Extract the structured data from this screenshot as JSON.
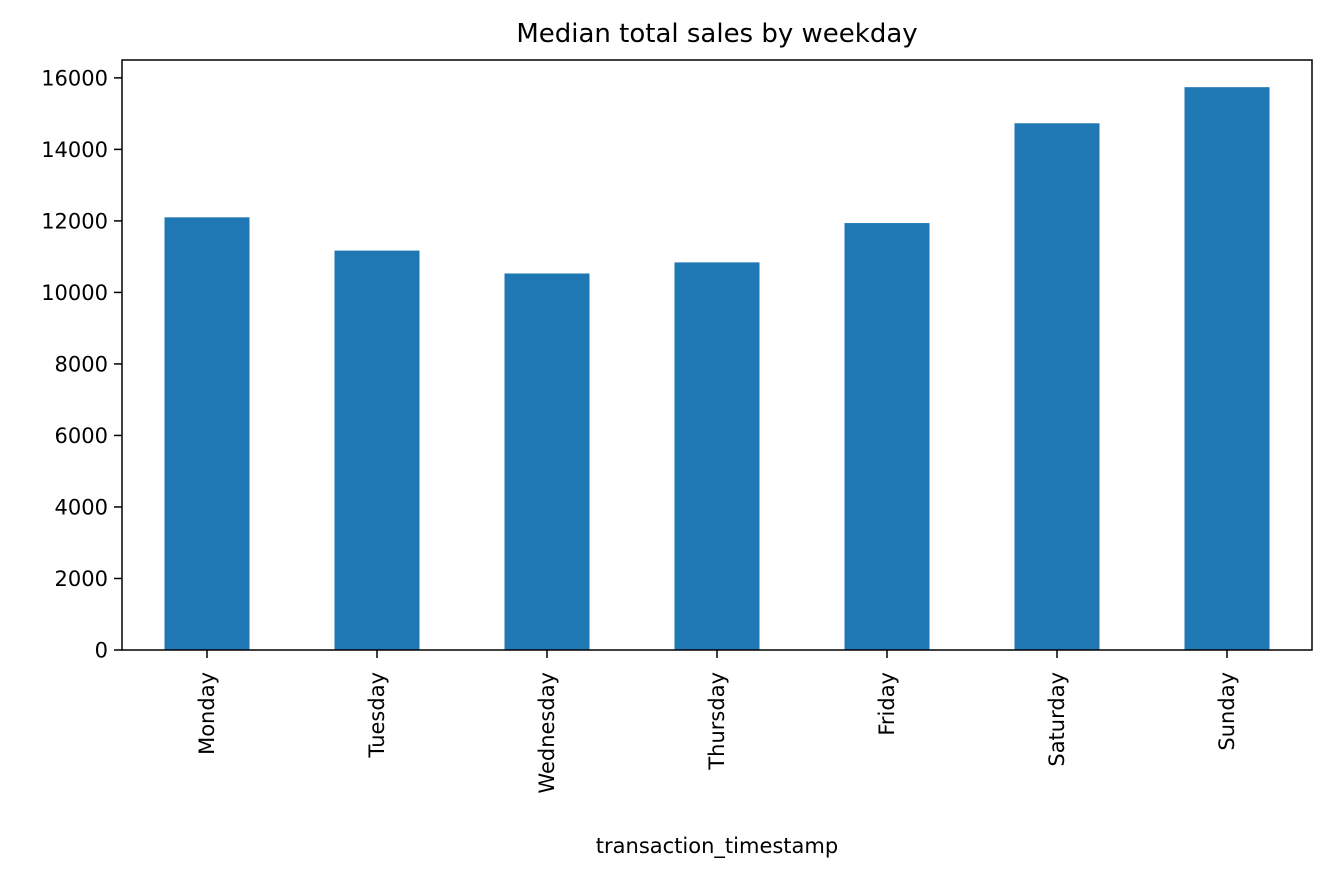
{
  "chart_data": {
    "type": "bar",
    "title": "Median total sales by weekday",
    "xlabel": "transaction_timestamp",
    "ylabel": "",
    "categories": [
      "Monday",
      "Tuesday",
      "Wednesday",
      "Thursday",
      "Friday",
      "Saturday",
      "Sunday"
    ],
    "values": [
      12100,
      11170,
      10530,
      10840,
      11940,
      14730,
      15740
    ],
    "ylim": [
      0,
      16500
    ],
    "yticks": [
      0,
      2000,
      4000,
      6000,
      8000,
      10000,
      12000,
      14000,
      16000
    ],
    "grid": false,
    "legend": "none",
    "bar_color": "#1f77b4"
  }
}
